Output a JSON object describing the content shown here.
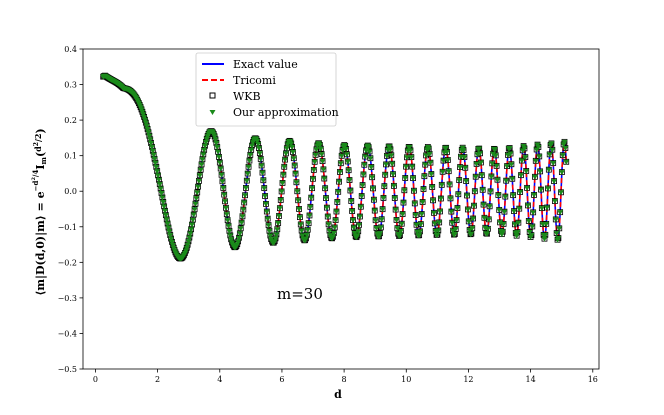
{
  "chart_data": {
    "type": "line",
    "xlabel": "d",
    "ylabel_html": "⟨m|D(d,0)|m⟩ = e^(−d²/4) I_m(d²/2)",
    "ylabel": {
      "prefix": "⟨m|D(d,0)|m⟩ = ",
      "e": "e",
      "exp": "−",
      "exp_frac_num": "d",
      "exp_frac_num_sup": "2",
      "exp_frac_den": "4",
      "I": "I",
      "I_sub": "m",
      "arg_open": "(",
      "arg_num": "d",
      "arg_num_sup": "2",
      "arg_den": "2",
      "arg_close": ")"
    },
    "xlim": [
      -0.4,
      16.2
    ],
    "ylim": [
      -0.5,
      0.4
    ],
    "xticks": [
      0,
      2,
      4,
      6,
      8,
      10,
      12,
      14,
      16
    ],
    "xtick_labels": [
      "0",
      "2",
      "4",
      "6",
      "8",
      "10",
      "12",
      "14",
      "16"
    ],
    "yticks": [
      -0.5,
      -0.4,
      -0.3,
      -0.2,
      -0.1,
      0.0,
      0.1,
      0.2,
      0.3,
      0.4
    ],
    "ytick_labels": [
      "−0.5",
      "−0.4",
      "−0.3",
      "−0.2",
      "−0.1",
      "0.0",
      "0.1",
      "0.2",
      "0.3",
      "0.4"
    ],
    "annotation": "m=30",
    "legend_position": "top-center",
    "series": [
      {
        "name": "Exact value",
        "style": "line",
        "color": "#0000ff"
      },
      {
        "name": "Tricomi",
        "style": "dashed",
        "color": "#ff0000"
      },
      {
        "name": "WKB",
        "style": "open-square",
        "color": "#000000"
      },
      {
        "name": "Our approximation",
        "style": "triangle",
        "color": "#1a8a1a"
      }
    ],
    "model": {
      "m": 30,
      "x_start": 0.25,
      "x_end": 15.15,
      "envelope": [
        [
          0.3,
          0.4
        ],
        [
          0.9,
          0.3
        ],
        [
          1.9,
          0.22
        ],
        [
          3.0,
          0.18
        ],
        [
          5.0,
          0.15
        ],
        [
          8.0,
          0.13
        ],
        [
          13.0,
          0.12
        ],
        [
          15.15,
          0.14
        ]
      ]
    }
  }
}
